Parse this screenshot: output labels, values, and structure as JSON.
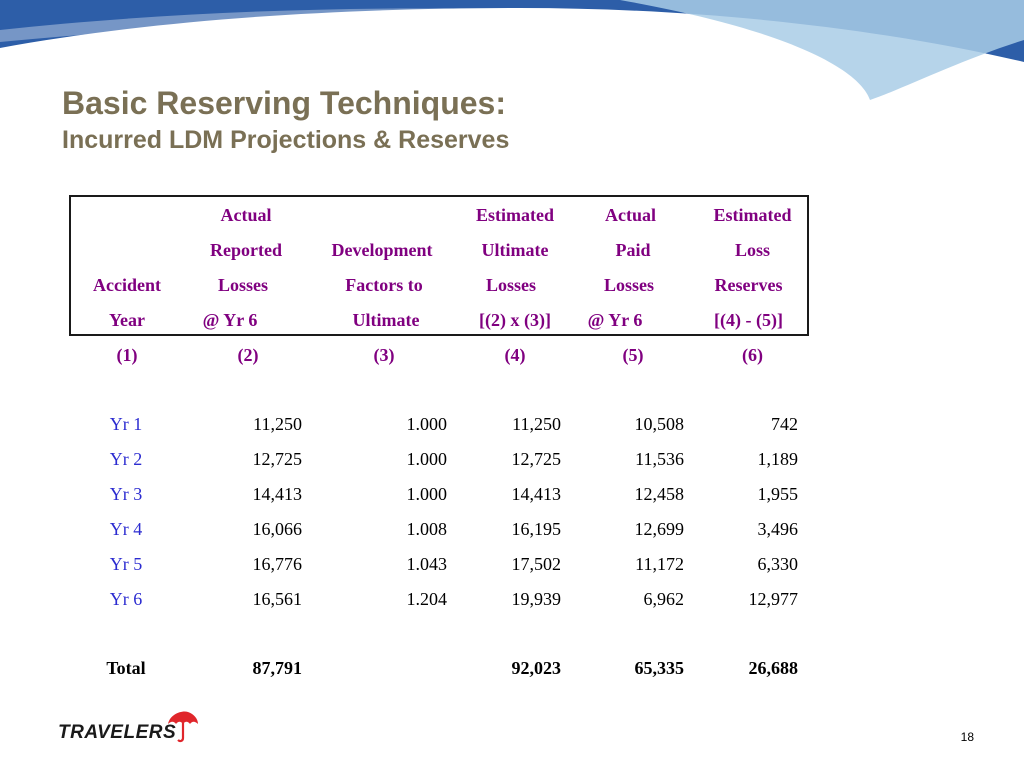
{
  "slide": {
    "title": "Basic Reserving Techniques:",
    "subtitle": "Incurred LDM Projections & Reserves",
    "page_number": "18",
    "logo_text": "TRAVELERS"
  },
  "colors": {
    "title": "#7a7055",
    "header_text": "#800080",
    "year_text": "#2b2bd0",
    "wave_dark": "#2d5ea8",
    "wave_light": "#a9cde6",
    "logo_umbrella": "#e0262b"
  },
  "table": {
    "headers": [
      [
        "",
        "Actual",
        "",
        "Estimated",
        "Actual",
        "Estimated"
      ],
      [
        "",
        "Reported",
        "Development",
        "Ultimate",
        "Paid",
        "Loss"
      ],
      [
        "Accident",
        "Losses",
        "Factors to",
        "Losses",
        "Losses",
        "Reserves"
      ],
      [
        "Year",
        "@ Yr 6",
        "Ultimate",
        "[(2) x (3)]",
        "@ Yr 6",
        "[(4) - (5)]"
      ]
    ],
    "column_numbers": [
      "(1)",
      "(2)",
      "(3)",
      "(4)",
      "(5)",
      "(6)"
    ],
    "rows": [
      [
        "Yr 1",
        "11,250",
        "1.000",
        "11,250",
        "10,508",
        "742"
      ],
      [
        "Yr 2",
        "12,725",
        "1.000",
        "12,725",
        "11,536",
        "1,189"
      ],
      [
        "Yr 3",
        "14,413",
        "1.000",
        "14,413",
        "12,458",
        "1,955"
      ],
      [
        "Yr 4",
        "16,066",
        "1.008",
        "16,195",
        "12,699",
        "3,496"
      ],
      [
        "Yr 5",
        "16,776",
        "1.043",
        "17,502",
        "11,172",
        "6,330"
      ],
      [
        "Yr 6",
        "16,561",
        "1.204",
        "19,939",
        "6,962",
        "12,977"
      ]
    ],
    "total": [
      "Total",
      "87,791",
      "",
      "92,023",
      "65,335",
      "26,688"
    ]
  }
}
